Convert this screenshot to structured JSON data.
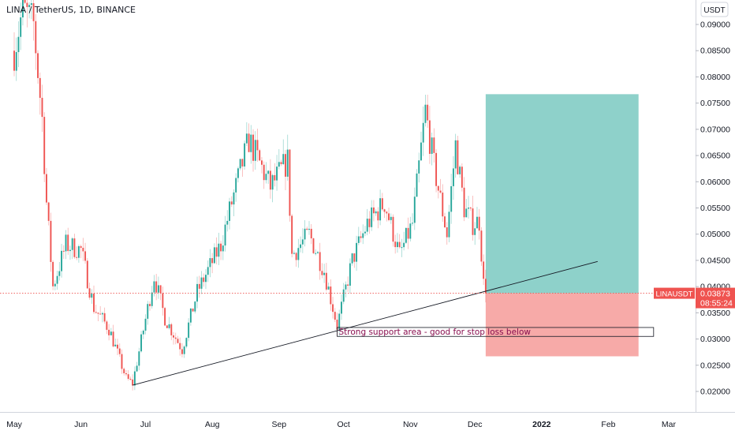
{
  "header": {
    "symbol": "LINA",
    "separator": " / ",
    "quote": "TetherUS",
    "interval": "1D",
    "exchange": "BINANCE"
  },
  "axis": {
    "currency_button": "USDT",
    "price_ticks": [
      "0.09000",
      "0.08500",
      "0.08000",
      "0.07500",
      "0.07000",
      "0.06500",
      "0.06000",
      "0.05500",
      "0.05000",
      "0.04500",
      "0.04000",
      "0.03500",
      "0.03000",
      "0.02500",
      "0.02000"
    ],
    "price_tick_values": [
      0.09,
      0.085,
      0.08,
      0.075,
      0.07,
      0.065,
      0.06,
      0.055,
      0.05,
      0.045,
      0.04,
      0.035,
      0.03,
      0.025,
      0.02
    ],
    "time_labels": [
      {
        "label": "May",
        "day": 0
      },
      {
        "label": "Jun",
        "day": 31
      },
      {
        "label": "Jul",
        "day": 61
      },
      {
        "label": "Aug",
        "day": 92
      },
      {
        "label": "Sep",
        "day": 123
      },
      {
        "label": "Oct",
        "day": 153
      },
      {
        "label": "Nov",
        "day": 184
      },
      {
        "label": "Dec",
        "day": 214
      },
      {
        "label": "2022",
        "day": 245
      },
      {
        "label": "Feb",
        "day": 276
      },
      {
        "label": "Mar",
        "day": 304
      }
    ],
    "bold_time_labels": [
      "2022"
    ]
  },
  "price_badge": {
    "symbol": "LINAUSDT",
    "price": "0.03873",
    "countdown": "08:55:24",
    "value": 0.03873,
    "color": "#ef5350"
  },
  "annotation": {
    "text": "Strong support area - good for stop loss below",
    "color": "#880e4f"
  },
  "colors": {
    "up": "#26a69a",
    "down": "#ef5350",
    "profit_zone": "#26a69a",
    "loss_zone": "#f7a5a3",
    "trendline": "#131722"
  },
  "chart_data": {
    "type": "candlestick",
    "x_axis": "date",
    "y_axis": "price (USDT)",
    "visible_range": {
      "from": "2021-05-01",
      "to": "2022-03-05"
    },
    "ylim": [
      0.016,
      0.0955
    ],
    "series_summary": [
      {
        "date": "2021-05-01",
        "close": 0.085
      },
      {
        "date": "2021-05-05",
        "close": 0.093
      },
      {
        "date": "2021-05-10",
        "close": 0.09
      },
      {
        "date": "2021-05-14",
        "close": 0.072
      },
      {
        "date": "2021-05-16",
        "close": 0.056
      },
      {
        "date": "2021-05-19",
        "close": 0.04
      },
      {
        "date": "2021-05-25",
        "close": 0.048
      },
      {
        "date": "2021-06-01",
        "close": 0.047
      },
      {
        "date": "2021-06-07",
        "close": 0.036
      },
      {
        "date": "2021-06-14",
        "close": 0.032
      },
      {
        "date": "2021-06-22",
        "close": 0.0225
      },
      {
        "date": "2021-06-25",
        "close": 0.0215
      },
      {
        "date": "2021-07-05",
        "close": 0.042
      },
      {
        "date": "2021-07-10",
        "close": 0.034
      },
      {
        "date": "2021-07-18",
        "close": 0.028
      },
      {
        "date": "2021-07-25",
        "close": 0.039
      },
      {
        "date": "2021-08-05",
        "close": 0.048
      },
      {
        "date": "2021-08-10",
        "close": 0.056
      },
      {
        "date": "2021-08-18",
        "close": 0.068
      },
      {
        "date": "2021-08-28",
        "close": 0.059
      },
      {
        "date": "2021-09-05",
        "close": 0.064
      },
      {
        "date": "2021-09-07",
        "close": 0.046
      },
      {
        "date": "2021-09-15",
        "close": 0.05
      },
      {
        "date": "2021-09-22",
        "close": 0.043
      },
      {
        "date": "2021-09-28",
        "close": 0.0325
      },
      {
        "date": "2021-10-05",
        "close": 0.045
      },
      {
        "date": "2021-10-12",
        "close": 0.052
      },
      {
        "date": "2021-10-20",
        "close": 0.056
      },
      {
        "date": "2021-10-27",
        "close": 0.046
      },
      {
        "date": "2021-11-02",
        "close": 0.052
      },
      {
        "date": "2021-11-08",
        "close": 0.0735
      },
      {
        "date": "2021-11-12",
        "close": 0.063
      },
      {
        "date": "2021-11-18",
        "close": 0.05
      },
      {
        "date": "2021-11-22",
        "close": 0.067
      },
      {
        "date": "2021-11-26",
        "close": 0.055
      },
      {
        "date": "2021-11-30",
        "close": 0.052
      },
      {
        "date": "2021-12-03",
        "close": 0.0525
      },
      {
        "date": "2021-12-05",
        "close": 0.0405
      },
      {
        "date": "2021-12-06",
        "close": 0.03873
      }
    ],
    "trendline": {
      "from": {
        "date": "2021-06-25",
        "price": 0.0212
      },
      "to": {
        "date": "2022-01-27",
        "price": 0.0448
      }
    },
    "long_position": {
      "start_date": "2021-12-06",
      "end_date": "2022-02-15",
      "entry": 0.03873,
      "target": 0.0767,
      "stop": 0.0267
    },
    "support_box": {
      "start_date": "2021-09-28",
      "end_date": "2022-02-22",
      "top": 0.0322,
      "bottom": 0.0305
    }
  }
}
